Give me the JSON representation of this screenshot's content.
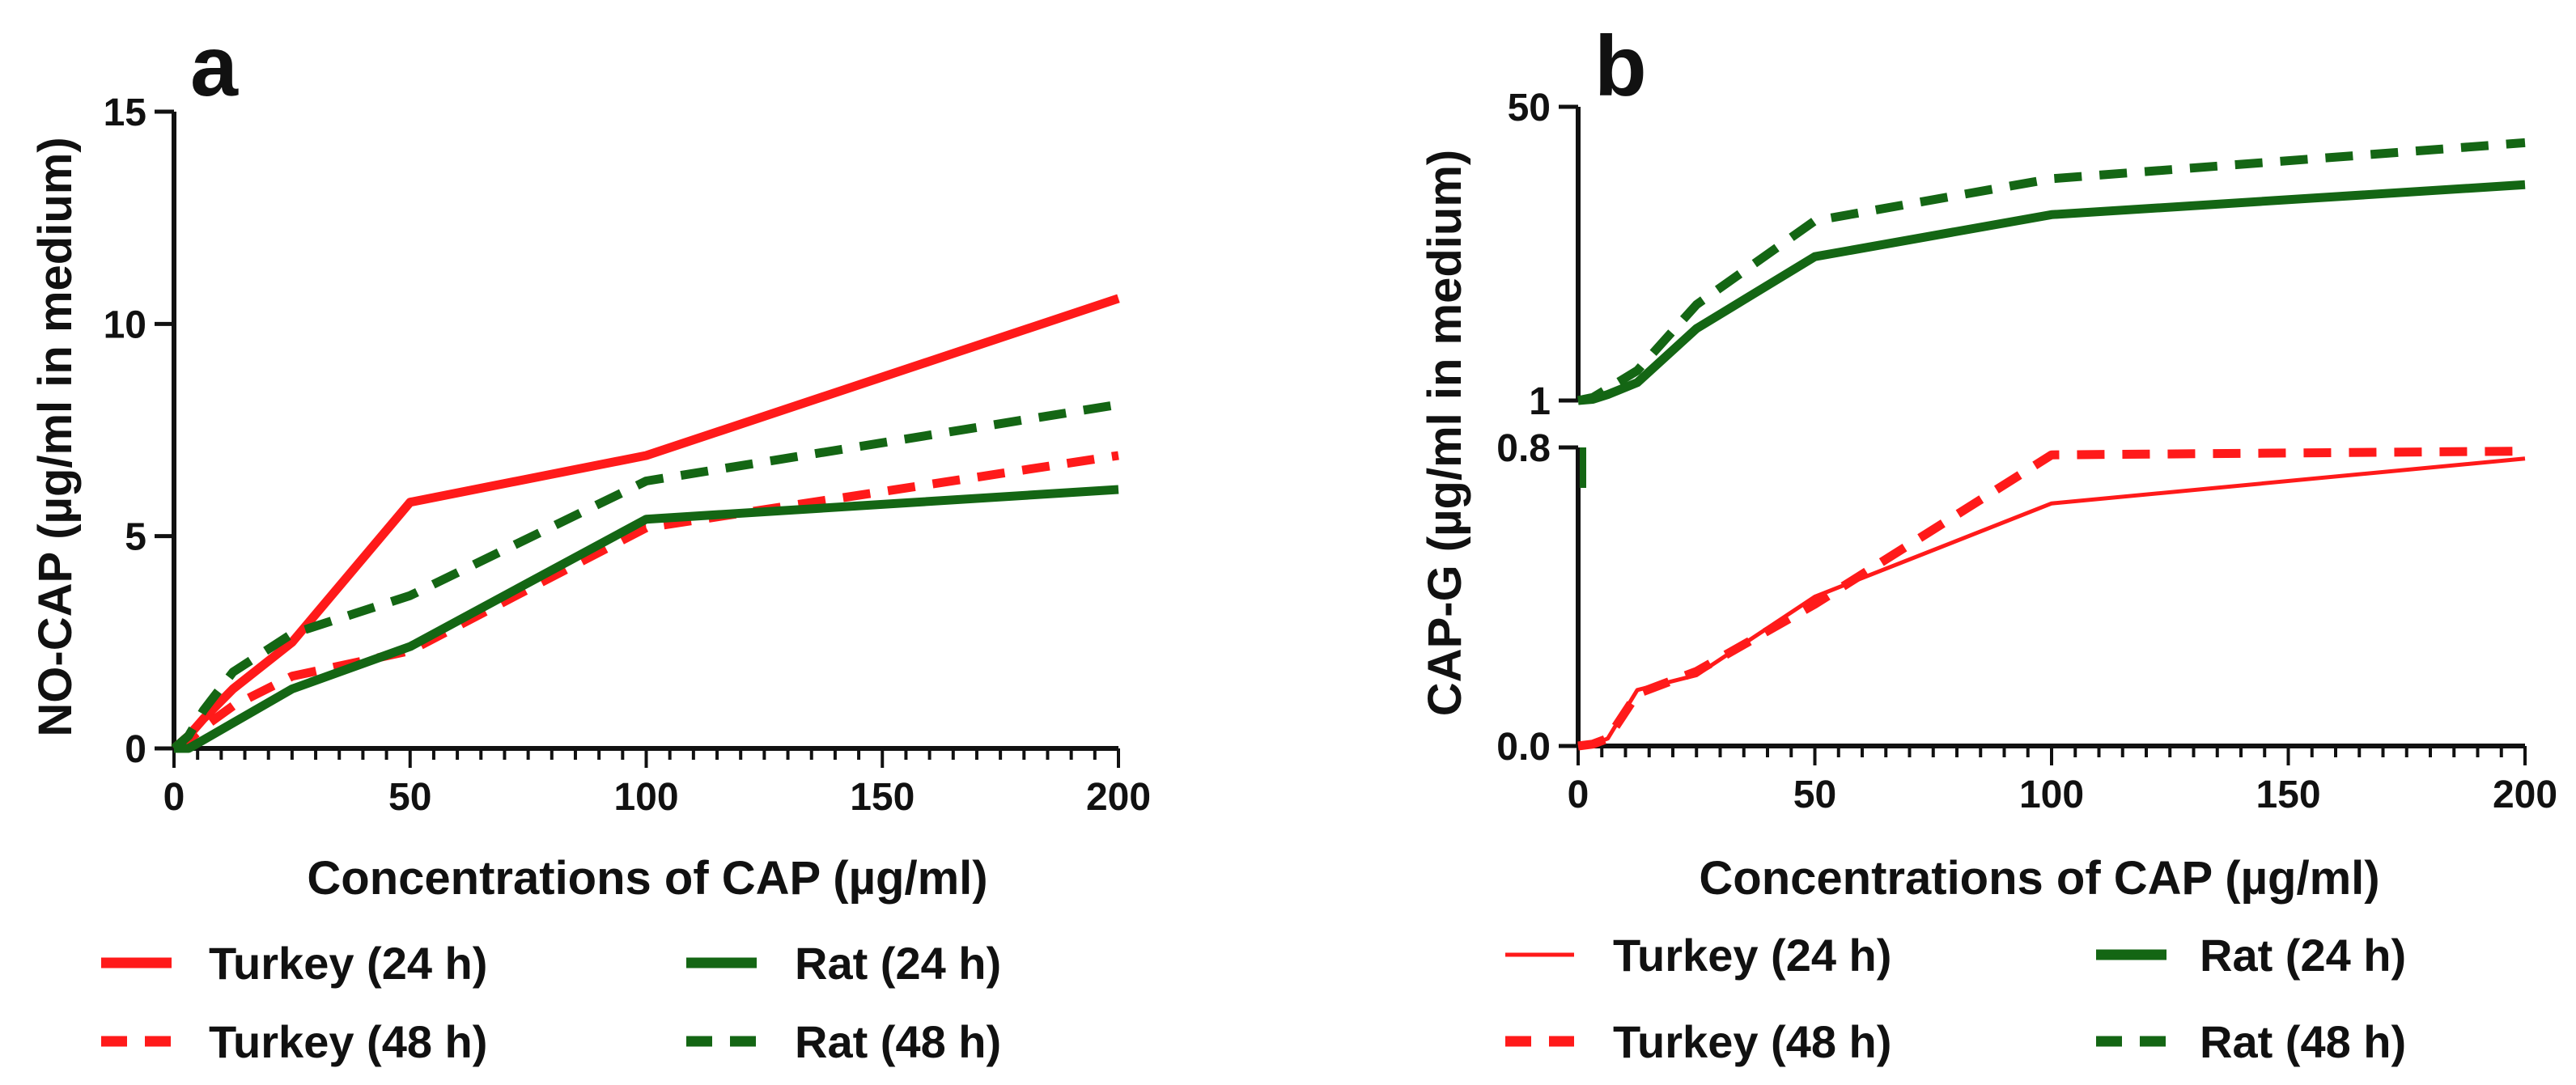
{
  "colors": {
    "turkey": "#ff1a1a",
    "rat": "#146614",
    "axis": "#111111"
  },
  "chart_data": [
    {
      "panel": "a",
      "type": "line",
      "xlabel": "Concentrations of CAP (µg/ml)",
      "ylabel": "NO-CAP (µg/ml in medium)",
      "xlim": [
        0,
        200
      ],
      "ylim": [
        0,
        15
      ],
      "xticks": [
        0,
        50,
        100,
        150,
        200
      ],
      "yticks": [
        0,
        5,
        10,
        15
      ],
      "series": [
        {
          "name": "Turkey (24 h)",
          "color": "turkey",
          "dashed": false,
          "width": "thick",
          "x": [
            0,
            3.1,
            6.25,
            12.5,
            25,
            50,
            100,
            200
          ],
          "y": [
            0,
            0.3,
            0.7,
            1.4,
            2.5,
            5.8,
            6.9,
            10.6
          ]
        },
        {
          "name": "Turkey (48 h)",
          "color": "turkey",
          "dashed": true,
          "width": "thick",
          "x": [
            0,
            3.1,
            6.25,
            12.5,
            25,
            50,
            100,
            200
          ],
          "y": [
            0,
            0.2,
            0.5,
            1.0,
            1.7,
            2.3,
            5.2,
            6.9
          ]
        },
        {
          "name": "Rat (24 h)",
          "color": "rat",
          "dashed": false,
          "width": "thick",
          "x": [
            0,
            3.1,
            6.25,
            12.5,
            25,
            50,
            100,
            200
          ],
          "y": [
            0,
            0.0,
            0.2,
            0.6,
            1.4,
            2.4,
            5.4,
            6.1
          ]
        },
        {
          "name": "Rat (48 h)",
          "color": "rat",
          "dashed": true,
          "width": "thick",
          "x": [
            0,
            3.1,
            6.25,
            12.5,
            25,
            50,
            100,
            200
          ],
          "y": [
            0,
            0.3,
            0.9,
            1.8,
            2.7,
            3.6,
            6.3,
            8.1
          ]
        }
      ]
    },
    {
      "panel": "b",
      "type": "line",
      "xlabel": "Concentrations of CAP (µg/ml)",
      "ylabel": "CAP-G (µg/ml in medium)",
      "xlim": [
        0,
        200
      ],
      "ylim_lower": [
        0,
        0.8
      ],
      "ylim_upper": [
        1,
        50
      ],
      "xticks": [
        0,
        50,
        100,
        150,
        200
      ],
      "yticks_lower": [
        "0.0",
        "0.8"
      ],
      "yticks_upper": [
        "1",
        "50"
      ],
      "series": [
        {
          "name": "Turkey (24 h)",
          "color": "turkey",
          "dashed": false,
          "width": "thin",
          "segment": "lower",
          "x": [
            0,
            3.1,
            6.25,
            12.5,
            25,
            50,
            100,
            200
          ],
          "y": [
            0,
            0.005,
            0.02,
            0.15,
            0.19,
            0.4,
            0.65,
            0.77
          ]
        },
        {
          "name": "Turkey (48 h)",
          "color": "turkey",
          "dashed": true,
          "width": "thick",
          "segment": "lower",
          "x": [
            0,
            3.1,
            6.25,
            12.5,
            25,
            50,
            100,
            200
          ],
          "y": [
            0,
            0.005,
            0.02,
            0.14,
            0.2,
            0.38,
            0.78,
            0.79
          ]
        },
        {
          "name": "Rat (24 h)",
          "color": "rat",
          "dashed": false,
          "width": "thick",
          "segment": "upper",
          "x": [
            0,
            3.1,
            6.25,
            12.5,
            25,
            50,
            100,
            200
          ],
          "y": [
            1,
            1.2,
            2,
            4,
            13,
            25,
            32,
            37
          ]
        },
        {
          "name": "Rat (48 h)",
          "color": "rat",
          "dashed": true,
          "width": "thick",
          "segment": "upper",
          "x": [
            0,
            3.1,
            6.25,
            12.5,
            25,
            50,
            100,
            200
          ],
          "y": [
            1,
            1.5,
            3,
            6,
            17,
            31,
            38,
            44
          ]
        }
      ]
    }
  ]
}
